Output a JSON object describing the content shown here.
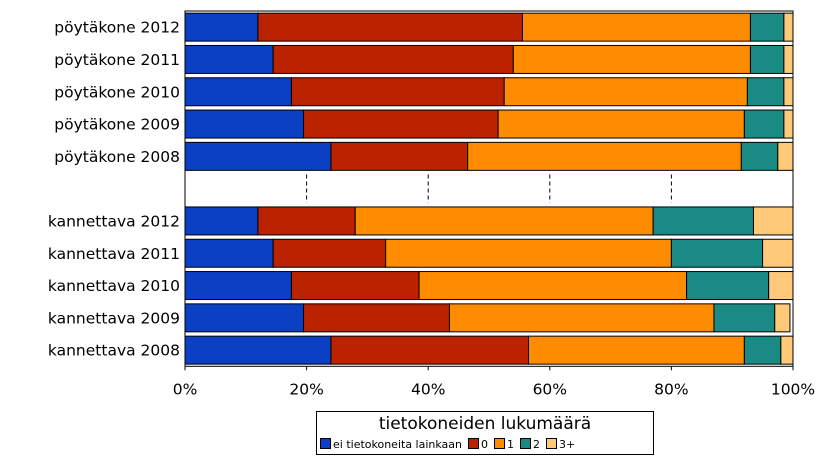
{
  "chart_data": {
    "type": "bar",
    "orientation": "horizontal",
    "stacked": "percent",
    "categories": [
      "pöytäkone 2012",
      "pöytäkone 2011",
      "pöytäkone 2010",
      "pöytäkone 2009",
      "pöytäkone 2008",
      "",
      "kannettava 2012",
      "kannettava 2011",
      "kannettava 2010",
      "kannettava 2009",
      "kannettava 2008"
    ],
    "series": [
      {
        "name": "ei tietokoneita lainkaan",
        "color": "#0b3fc4",
        "values": [
          12,
          14.5,
          17.5,
          19.5,
          24,
          null,
          12,
          14.5,
          17.5,
          19.5,
          24
        ]
      },
      {
        "name": "0",
        "color": "#bb2200",
        "values": [
          43.5,
          39.5,
          35,
          32,
          22.5,
          null,
          16,
          18.5,
          21,
          24,
          32.5
        ]
      },
      {
        "name": "1",
        "color": "#ff8c00",
        "values": [
          37.5,
          39,
          40,
          40.5,
          45,
          null,
          49,
          47,
          44,
          43.5,
          35.5
        ]
      },
      {
        "name": "2",
        "color": "#1a8a84",
        "values": [
          5.5,
          5.5,
          6,
          6.5,
          6,
          null,
          16.5,
          15,
          13.5,
          10,
          6
        ]
      },
      {
        "name": "3+",
        "color": "#ffc97a",
        "values": [
          1.5,
          1.5,
          1.5,
          1.5,
          2.5,
          null,
          6.5,
          5,
          4,
          2.5,
          2
        ]
      }
    ],
    "xlim": [
      0,
      100
    ],
    "x_ticks": [
      "0%",
      "20%",
      "40%",
      "60%",
      "80%",
      "100%"
    ],
    "gridlines": "dashed, only in the empty separator row",
    "legend": {
      "title": "tietokoneiden lukumäärä",
      "placement": "bottom-center"
    }
  }
}
